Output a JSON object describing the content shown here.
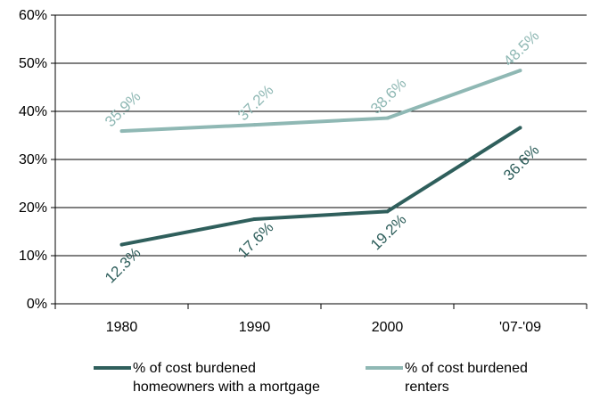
{
  "chart_data": {
    "type": "line",
    "categories": [
      "1980",
      "1990",
      "2000",
      "'07-'09"
    ],
    "ylim": [
      0,
      60
    ],
    "yticks": [
      "0%",
      "10%",
      "20%",
      "30%",
      "40%",
      "50%",
      "60%"
    ],
    "grid": true,
    "legend_position": "bottom",
    "series": [
      {
        "name_lines": [
          "% of cost burdened",
          "homeowners with a mortgage"
        ],
        "values": [
          12.3,
          17.6,
          19.2,
          36.6
        ],
        "labels": [
          "12.3%",
          "17.6%",
          "19.2%",
          "36.6%"
        ],
        "color": "#2f5f5c"
      },
      {
        "name_lines": [
          "% of cost burdened",
          "renters"
        ],
        "values": [
          35.9,
          37.2,
          38.6,
          48.5
        ],
        "labels": [
          "35.9%",
          "37.2%",
          "38.6%",
          "48.5%"
        ],
        "color": "#8fb8b4"
      }
    ]
  }
}
